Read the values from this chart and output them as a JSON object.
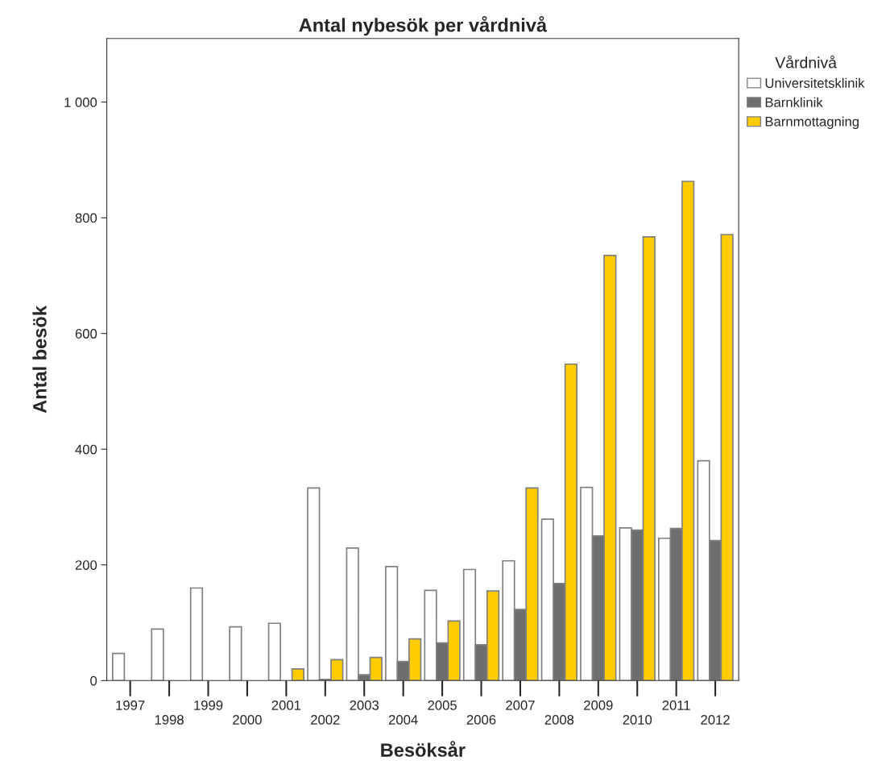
{
  "chart_data": {
    "type": "bar",
    "title": "Antal nybesök per vårdnivå",
    "xlabel": "Besöksår",
    "ylabel": "Antal besök",
    "legend_title": "Vårdnivå",
    "categories": [
      "1997",
      "1998",
      "1999",
      "2000",
      "2001",
      "2002",
      "2003",
      "2004",
      "2005",
      "2006",
      "2007",
      "2008",
      "2009",
      "2010",
      "2011",
      "2012"
    ],
    "series": [
      {
        "name": "Universitetsklinik",
        "color": "#ffffff",
        "values": [
          47,
          89,
          160,
          93,
          99,
          333,
          229,
          197,
          156,
          192,
          207,
          279,
          334,
          264,
          246,
          380
        ]
      },
      {
        "name": "Barnklinik",
        "color": "#6e6e6e",
        "values": [
          null,
          null,
          null,
          null,
          null,
          2,
          10,
          33,
          65,
          62,
          123,
          168,
          250,
          260,
          263,
          242
        ]
      },
      {
        "name": "Barnmottagning",
        "color": "#ffcc00",
        "values": [
          null,
          null,
          null,
          null,
          20,
          36,
          40,
          72,
          103,
          155,
          333,
          547,
          735,
          767,
          863,
          771
        ]
      }
    ],
    "ylim": [
      0,
      1110
    ],
    "yticks": [
      0,
      200,
      400,
      600,
      800,
      {
        "value": 1000,
        "label": "1 000"
      }
    ],
    "grid": false,
    "legend": "right"
  }
}
